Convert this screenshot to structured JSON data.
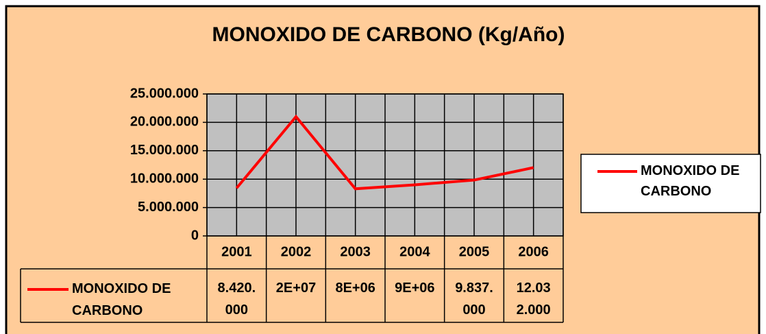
{
  "chart_data": {
    "type": "line",
    "title": "MONOXIDO DE CARBONO (Kg/Año)",
    "categories": [
      "2001",
      "2002",
      "2003",
      "2004",
      "2005",
      "2006"
    ],
    "series": [
      {
        "name": "MONOXIDO DE CARBONO",
        "color": "#ff0000",
        "values": [
          8420000,
          21000000,
          8300000,
          9000000,
          9837000,
          12032000
        ],
        "value_labels": [
          "8.420.000",
          "2E+07",
          "8E+06",
          "9E+06",
          "9.837.000",
          "12.032.000"
        ]
      }
    ],
    "ylim": [
      0,
      25000000
    ],
    "yticks": [
      {
        "value": 0,
        "label": "0"
      },
      {
        "value": 5000000,
        "label": "5.000.000"
      },
      {
        "value": 10000000,
        "label": "10.000.000"
      },
      {
        "value": 15000000,
        "label": "15.000.000"
      },
      {
        "value": 20000000,
        "label": "20.000.000"
      },
      {
        "value": 25000000,
        "label": "25.000.000"
      }
    ],
    "grid": true,
    "legend": "right",
    "data_table": true
  }
}
